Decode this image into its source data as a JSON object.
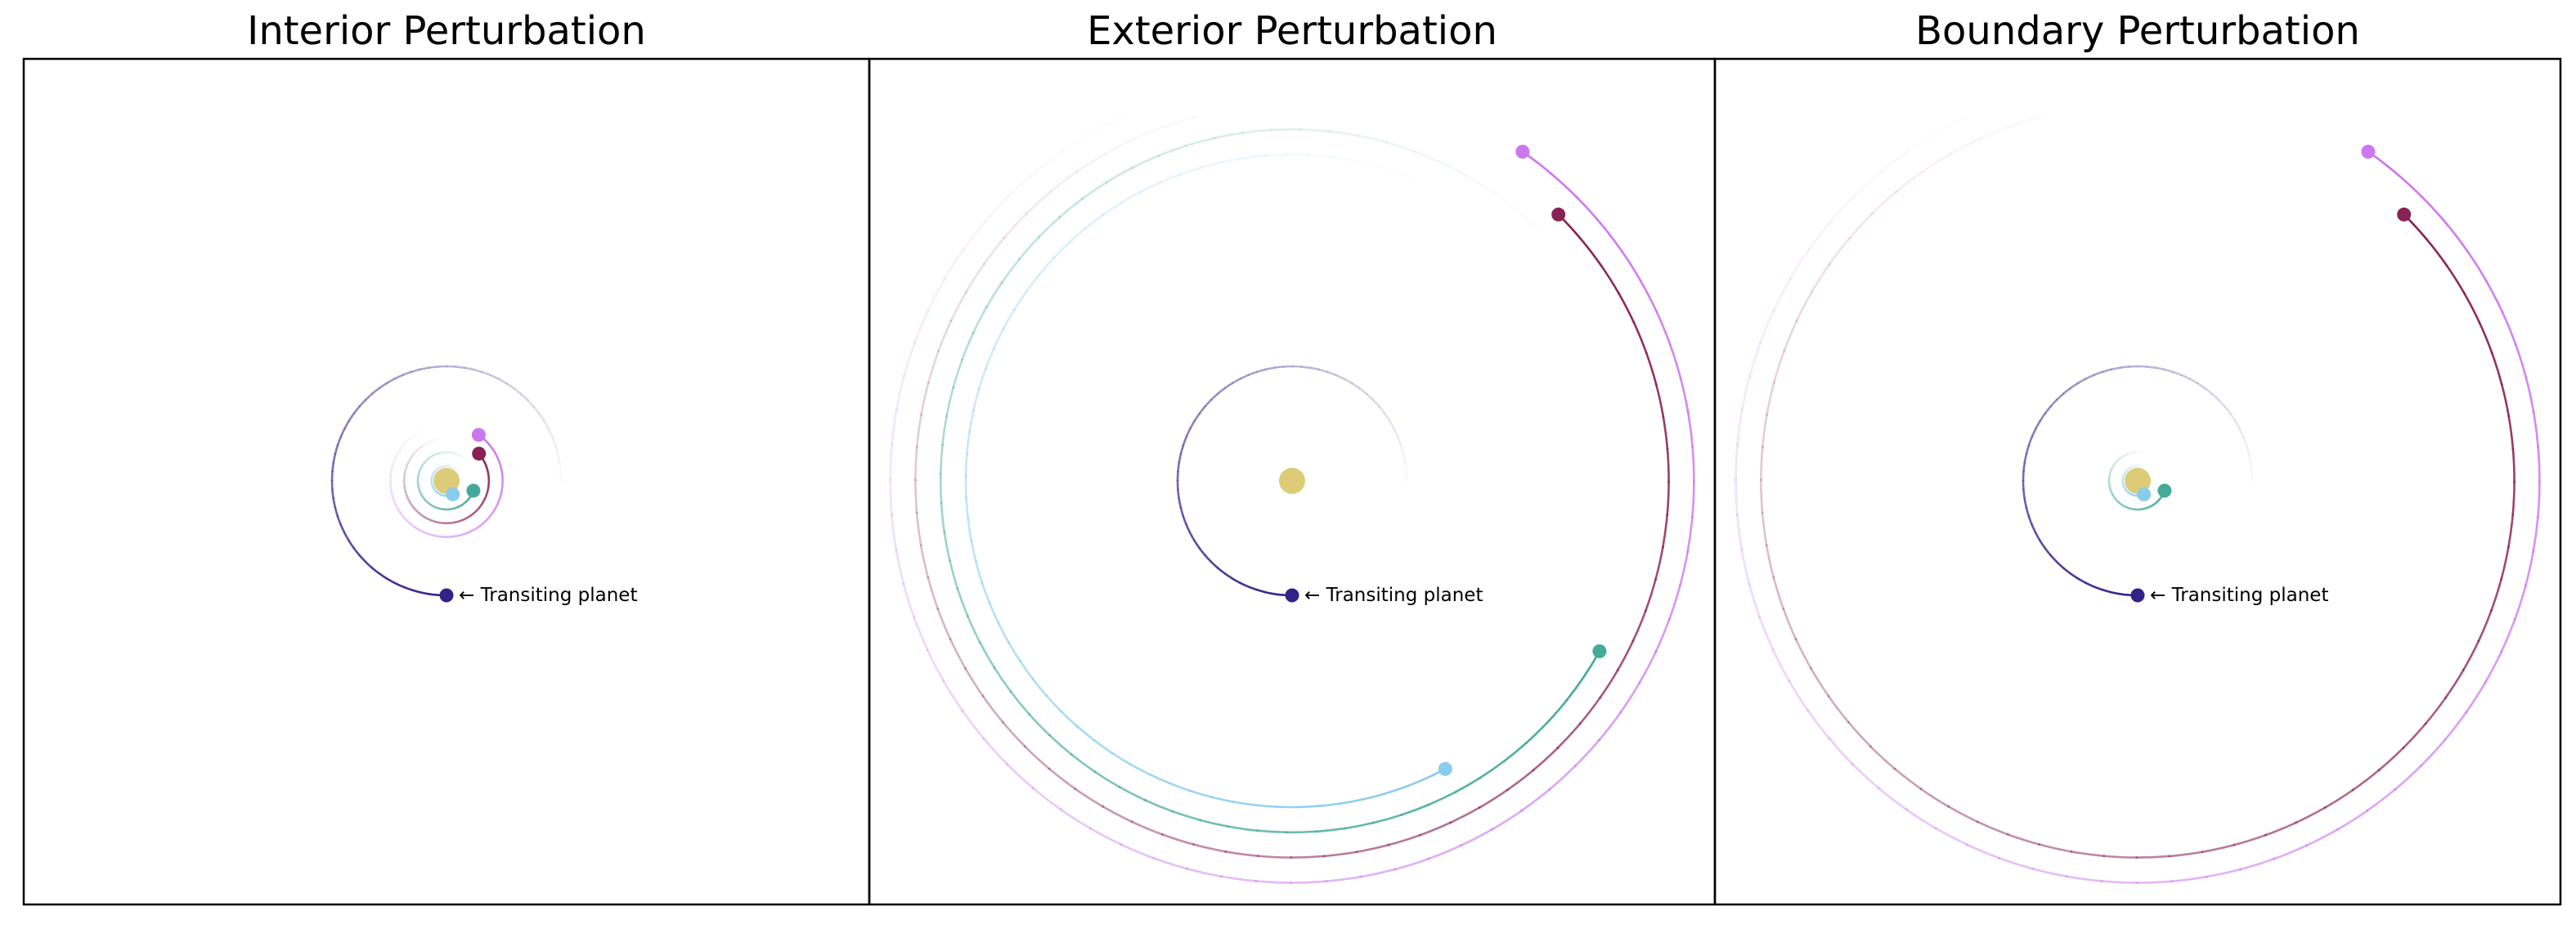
{
  "panels": [
    {
      "title": "Interior Perturbation",
      "label": "← Transiting planet",
      "star_color": "#ddcc77",
      "transit": {
        "color": "#332288",
        "r": 1.0,
        "start_deg": 90,
        "sweep_deg": 270
      },
      "others": [
        {
          "color": "#88ccee",
          "r": 0.13,
          "start_deg": 65,
          "sweep_deg": 280
        },
        {
          "color": "#44aa99",
          "r": 0.25,
          "start_deg": 20,
          "sweep_deg": 300
        },
        {
          "color": "#882255",
          "r": 0.37,
          "start_deg": -40,
          "sweep_deg": 300
        },
        {
          "color": "#cc77ee",
          "r": 0.49,
          "start_deg": -55,
          "sweep_deg": 300
        }
      ]
    },
    {
      "title": "Exterior Perturbation",
      "label": "← Transiting planet",
      "star_color": "#ddcc77",
      "transit": {
        "color": "#332288",
        "r": 1.0,
        "start_deg": 90,
        "sweep_deg": 270
      },
      "others": [
        {
          "color": "#88ccee",
          "r": 2.85,
          "start_deg": 62,
          "sweep_deg": 230
        },
        {
          "color": "#44aa99",
          "r": 3.07,
          "start_deg": 29,
          "sweep_deg": 285
        },
        {
          "color": "#882255",
          "r": 3.29,
          "start_deg": -45,
          "sweep_deg": 300
        },
        {
          "color": "#cc77ee",
          "r": 3.51,
          "start_deg": -55,
          "sweep_deg": 300
        }
      ]
    },
    {
      "title": "Boundary Perturbation",
      "label": "← Transiting planet",
      "star_color": "#ddcc77",
      "transit": {
        "color": "#332288",
        "r": 1.0,
        "start_deg": 90,
        "sweep_deg": 270
      },
      "others": [
        {
          "color": "#88ccee",
          "r": 0.13,
          "start_deg": 65,
          "sweep_deg": 240
        },
        {
          "color": "#44aa99",
          "r": 0.25,
          "start_deg": 20,
          "sweep_deg": 260
        },
        {
          "color": "#882255",
          "r": 3.29,
          "start_deg": -45,
          "sweep_deg": 300
        },
        {
          "color": "#cc77ee",
          "r": 3.51,
          "start_deg": -55,
          "sweep_deg": 300
        }
      ]
    }
  ]
}
